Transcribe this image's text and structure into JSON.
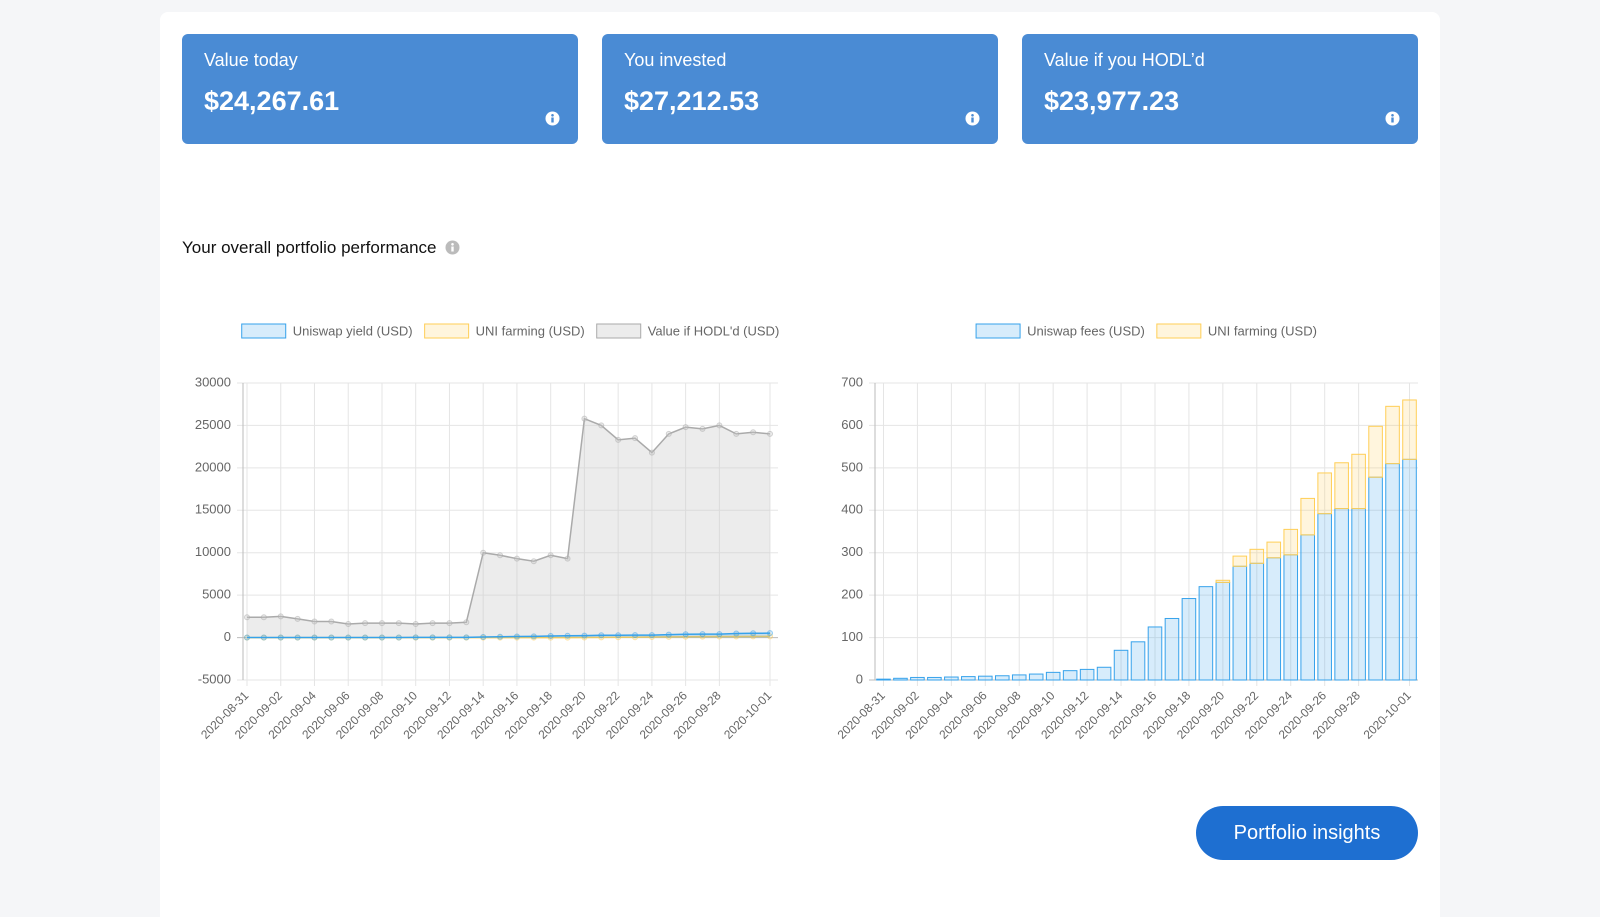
{
  "cards": [
    {
      "label": "Value today",
      "value": "$24,267.61"
    },
    {
      "label": "You invested",
      "value": "$27,212.53"
    },
    {
      "label": "Value if you HODL’d",
      "value": "$23,977.23"
    }
  ],
  "section_title": "Your overall portfolio performance",
  "button": "Portfolio insights",
  "chart_data": [
    {
      "type": "line",
      "categories": [
        "2020-08-31",
        null,
        "2020-09-02",
        null,
        "2020-09-04",
        null,
        "2020-09-06",
        null,
        "2020-09-08",
        null,
        "2020-09-10",
        null,
        "2020-09-12",
        null,
        "2020-09-14",
        null,
        "2020-09-16",
        null,
        "2020-09-18",
        null,
        "2020-09-20",
        null,
        "2020-09-22",
        null,
        "2020-09-24",
        null,
        "2020-09-26",
        null,
        "2020-09-28",
        null,
        null,
        "2020-10-01"
      ],
      "series": [
        {
          "name": "Uniswap yield (USD)",
          "color": "#36a2eb",
          "fill": "rgba(54,162,235,0.2)",
          "values": [
            2,
            4,
            6,
            6,
            7,
            8,
            9,
            10,
            12,
            14,
            18,
            22,
            25,
            30,
            70,
            90,
            125,
            145,
            192,
            220,
            230,
            268,
            275,
            288,
            295,
            342,
            392,
            404,
            404,
            478,
            510,
            520
          ]
        },
        {
          "name": "UNI farming (USD)",
          "color": "#ffce56",
          "fill": "rgba(255,206,86,0.2)",
          "values": [
            0,
            0,
            0,
            0,
            0,
            0,
            0,
            0,
            0,
            0,
            0,
            0,
            0,
            0,
            0,
            0,
            0,
            0,
            0,
            0,
            5,
            24,
            33,
            37,
            60,
            86,
            96,
            108,
            128,
            120,
            135,
            140
          ]
        },
        {
          "name": "Value if HODL'd (USD)",
          "color": "#aaaaaa",
          "fill": "rgba(200,200,200,0.35)",
          "values": [
            2400,
            2400,
            2500,
            2200,
            1900,
            1900,
            1600,
            1700,
            1700,
            1700,
            1600,
            1700,
            1700,
            1800,
            10000,
            9700,
            9300,
            9000,
            9700,
            9300,
            25800,
            25000,
            23300,
            23500,
            21800,
            24000,
            24800,
            24600,
            25000,
            24000,
            24200,
            24000
          ]
        }
      ],
      "ylim": [
        -5000,
        30000
      ],
      "yticks": [
        -5000,
        0,
        5000,
        10000,
        15000,
        20000,
        25000,
        30000
      ],
      "grid": true
    },
    {
      "type": "bar",
      "stacked": true,
      "categories": [
        "2020-08-31",
        null,
        "2020-09-02",
        null,
        "2020-09-04",
        null,
        "2020-09-06",
        null,
        "2020-09-08",
        null,
        "2020-09-10",
        null,
        "2020-09-12",
        null,
        "2020-09-14",
        null,
        "2020-09-16",
        null,
        "2020-09-18",
        null,
        "2020-09-20",
        null,
        "2020-09-22",
        null,
        "2020-09-24",
        null,
        "2020-09-26",
        null,
        "2020-09-28",
        null,
        null,
        "2020-10-01"
      ],
      "series": [
        {
          "name": "Uniswap fees (USD)",
          "color": "#36a2eb",
          "fill": "rgba(54,162,235,0.2)",
          "values": [
            2,
            4,
            6,
            6,
            7,
            8,
            9,
            10,
            12,
            14,
            18,
            22,
            25,
            30,
            70,
            90,
            125,
            145,
            192,
            220,
            230,
            268,
            275,
            288,
            295,
            342,
            392,
            404,
            404,
            478,
            510,
            520
          ]
        },
        {
          "name": "UNI farming (USD)",
          "color": "#ffce56",
          "fill": "rgba(255,206,86,0.2)",
          "values": [
            0,
            0,
            0,
            0,
            0,
            0,
            0,
            0,
            0,
            0,
            0,
            0,
            0,
            0,
            0,
            0,
            0,
            0,
            0,
            0,
            5,
            24,
            33,
            37,
            60,
            86,
            96,
            108,
            128,
            120,
            135,
            140
          ]
        }
      ],
      "ylim": [
        0,
        700
      ],
      "yticks": [
        0,
        100,
        200,
        300,
        400,
        500,
        600,
        700
      ],
      "grid": true
    }
  ]
}
